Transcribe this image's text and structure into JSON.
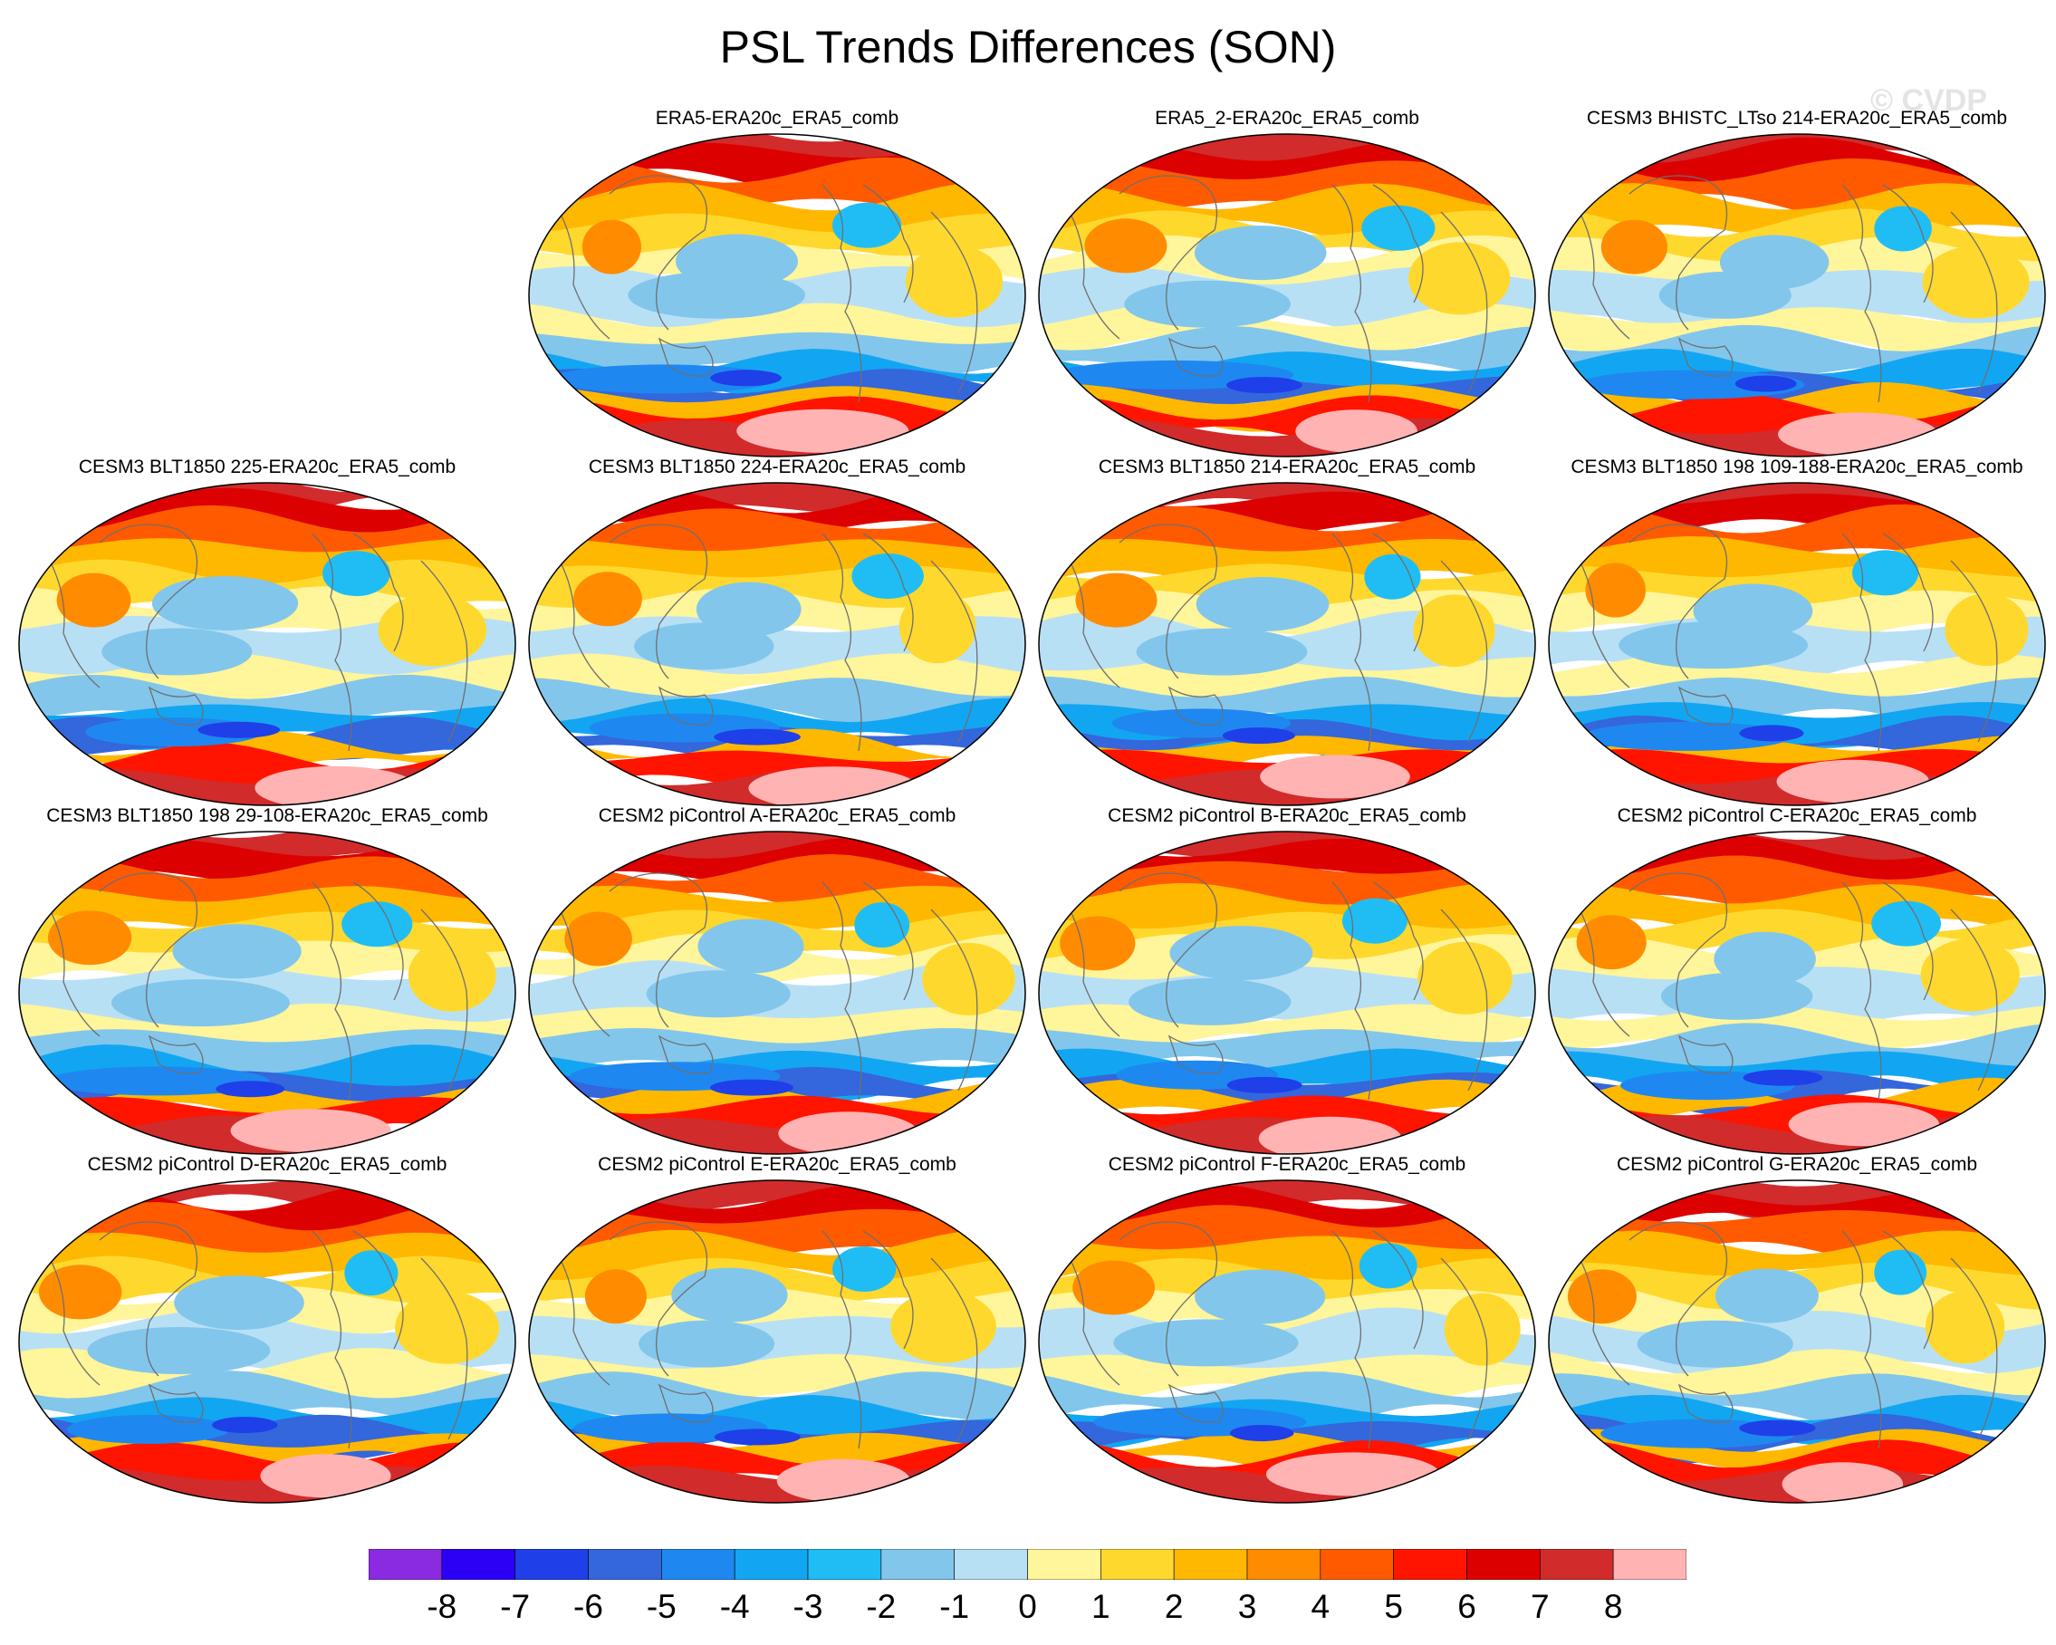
{
  "title": "PSL Trends Differences (SON)",
  "watermark": "© CVDP",
  "panels": [
    {
      "title": "ERA5-ERA20c_ERA5_comb",
      "col": 1,
      "row": 0,
      "seed": 11
    },
    {
      "title": "ERA5_2-ERA20c_ERA5_comb",
      "col": 2,
      "row": 0,
      "seed": 23
    },
    {
      "title": "CESM3 BHISTC_LTso 214-ERA20c_ERA5_comb",
      "col": 3,
      "row": 0,
      "seed": 37
    },
    {
      "title": "CESM3 BLT1850 225-ERA20c_ERA5_comb",
      "col": 0,
      "row": 1,
      "seed": 41
    },
    {
      "title": "CESM3 BLT1850 224-ERA20c_ERA5_comb",
      "col": 1,
      "row": 1,
      "seed": 53
    },
    {
      "title": "CESM3 BLT1850 214-ERA20c_ERA5_comb",
      "col": 2,
      "row": 1,
      "seed": 67
    },
    {
      "title": "CESM3 BLT1850 198 109-188-ERA20c_ERA5_comb",
      "col": 3,
      "row": 1,
      "seed": 71
    },
    {
      "title": "CESM3 BLT1850 198 29-108-ERA20c_ERA5_comb",
      "col": 0,
      "row": 2,
      "seed": 83
    },
    {
      "title": "CESM2 piControl A-ERA20c_ERA5_comb",
      "col": 1,
      "row": 2,
      "seed": 97
    },
    {
      "title": "CESM2 piControl B-ERA20c_ERA5_comb",
      "col": 2,
      "row": 2,
      "seed": 101
    },
    {
      "title": "CESM2 piControl C-ERA20c_ERA5_comb",
      "col": 3,
      "row": 2,
      "seed": 113
    },
    {
      "title": "CESM2 piControl D-ERA20c_ERA5_comb",
      "col": 0,
      "row": 3,
      "seed": 127
    },
    {
      "title": "CESM2 piControl E-ERA20c_ERA5_comb",
      "col": 1,
      "row": 3,
      "seed": 131
    },
    {
      "title": "CESM2 piControl F-ERA20c_ERA5_comb",
      "col": 2,
      "row": 3,
      "seed": 149
    },
    {
      "title": "CESM2 piControl G-ERA20c_ERA5_comb",
      "col": 3,
      "row": 3,
      "seed": 157
    }
  ],
  "colorbar": {
    "labels": [
      "-8",
      "-7",
      "-6",
      "-5",
      "-4",
      "-3",
      "-2",
      "-1",
      "0",
      "1",
      "2",
      "3",
      "4",
      "5",
      "6",
      "7",
      "8"
    ],
    "colors": [
      "#8a2be2",
      "#2b00f5",
      "#1f3fe8",
      "#3466dc",
      "#1e88f0",
      "#12a6f2",
      "#20bdf5",
      "#82c6ec",
      "#b8e0f5",
      "#fff59a",
      "#ffd82e",
      "#ffb800",
      "#ff8c00",
      "#ff5a00",
      "#ff1400",
      "#dc0000",
      "#d12b2b",
      "#ffb3b3"
    ]
  }
}
